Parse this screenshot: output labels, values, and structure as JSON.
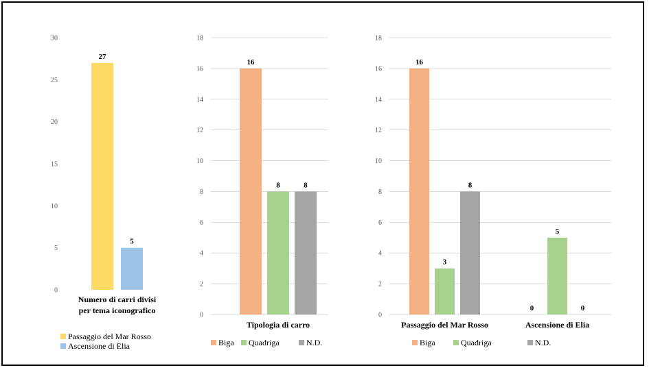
{
  "chart_data": [
    {
      "type": "bar",
      "categories": [
        "Numero di carri divisi per tema iconografico"
      ],
      "xlabel_lines": [
        "Numero di carri divisi",
        "per tema iconografico"
      ],
      "series": [
        {
          "name": "Passaggio del Mar Rosso",
          "color": "#FFD966",
          "values": [
            27
          ]
        },
        {
          "name": "Ascensione di Elia",
          "color": "#9DC3E6",
          "values": [
            5
          ]
        }
      ],
      "ylim": [
        0,
        30
      ],
      "yticks": [
        "0",
        "5",
        "10",
        "15",
        "20",
        "25",
        "30"
      ],
      "grid": false,
      "legend": "bottom (vertical)"
    },
    {
      "type": "bar",
      "categories": [
        "Tipologia di carro"
      ],
      "series": [
        {
          "name": "Biga",
          "color": "#F4B183",
          "values": [
            16
          ]
        },
        {
          "name": "Quadriga",
          "color": "#A9D18E",
          "values": [
            8
          ]
        },
        {
          "name": "N.D.",
          "color": "#A5A5A5",
          "values": [
            8
          ]
        }
      ],
      "ylim": [
        0,
        18
      ],
      "yticks": [
        "0",
        "2",
        "4",
        "6",
        "8",
        "10",
        "12",
        "14",
        "16",
        "18"
      ],
      "grid": true,
      "legend": "bottom"
    },
    {
      "type": "bar",
      "categories": [
        "Passaggio del Mar Rosso",
        "Ascensione di Elia"
      ],
      "series": [
        {
          "name": "Biga",
          "color": "#F4B183",
          "values": [
            16,
            0
          ]
        },
        {
          "name": "Quadriga",
          "color": "#A9D18E",
          "values": [
            3,
            5
          ]
        },
        {
          "name": "N.D.",
          "color": "#A5A5A5",
          "values": [
            8,
            0
          ]
        }
      ],
      "ylim": [
        0,
        18
      ],
      "yticks": [
        "0",
        "2",
        "4",
        "6",
        "8",
        "10",
        "12",
        "14",
        "16",
        "18"
      ],
      "grid": true,
      "legend": "bottom"
    }
  ]
}
